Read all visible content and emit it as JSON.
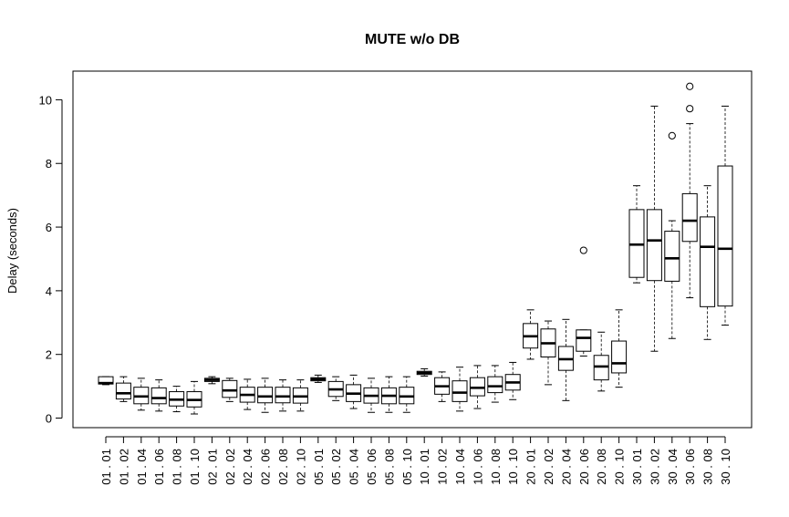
{
  "chart_data": {
    "type": "boxplot",
    "title": "MUTE w/o DB",
    "xlabel": "",
    "ylabel": "Delay (seconds)",
    "ylim": [
      -0.3,
      10.9
    ],
    "yticks": [
      0,
      2,
      4,
      6,
      8,
      10
    ],
    "grid": false,
    "legend": "none",
    "categories": [
      "01 . 01",
      "01 . 02",
      "01 . 04",
      "01 . 06",
      "01 . 08",
      "01 . 10",
      "02 . 01",
      "02 . 02",
      "02 . 04",
      "02 . 06",
      "02 . 08",
      "02 . 10",
      "05 . 01",
      "05 . 02",
      "05 . 04",
      "05 . 06",
      "05 . 08",
      "05 . 10",
      "10 . 01",
      "10 . 02",
      "10 . 04",
      "10 . 06",
      "10 . 08",
      "10 . 10",
      "20 . 01",
      "20 . 02",
      "20 . 04",
      "20 . 06",
      "20 . 08",
      "20 . 10",
      "30 . 01",
      "30 . 02",
      "30 . 04",
      "30 . 06",
      "30 . 08",
      "30 . 10"
    ],
    "boxes": [
      {
        "min": 1.05,
        "q1": 1.07,
        "median": 1.1,
        "q3": 1.3,
        "max": 1.3,
        "outliers": []
      },
      {
        "min": 0.52,
        "q1": 0.6,
        "median": 0.78,
        "q3": 1.1,
        "max": 1.3,
        "outliers": []
      },
      {
        "min": 0.25,
        "q1": 0.45,
        "median": 0.68,
        "q3": 0.97,
        "max": 1.25,
        "outliers": []
      },
      {
        "min": 0.22,
        "q1": 0.45,
        "median": 0.63,
        "q3": 0.95,
        "max": 1.2,
        "outliers": []
      },
      {
        "min": 0.2,
        "q1": 0.38,
        "median": 0.58,
        "q3": 0.83,
        "max": 1.0,
        "outliers": []
      },
      {
        "min": 0.13,
        "q1": 0.35,
        "median": 0.57,
        "q3": 0.83,
        "max": 1.15,
        "outliers": []
      },
      {
        "min": 1.08,
        "q1": 1.15,
        "median": 1.2,
        "q3": 1.25,
        "max": 1.3,
        "outliers": []
      },
      {
        "min": 0.52,
        "q1": 0.65,
        "median": 0.87,
        "q3": 1.18,
        "max": 1.25,
        "outliers": []
      },
      {
        "min": 0.27,
        "q1": 0.5,
        "median": 0.73,
        "q3": 0.97,
        "max": 1.22,
        "outliers": []
      },
      {
        "min": 0.18,
        "q1": 0.48,
        "median": 0.68,
        "q3": 0.97,
        "max": 1.25,
        "outliers": []
      },
      {
        "min": 0.22,
        "q1": 0.48,
        "median": 0.68,
        "q3": 0.97,
        "max": 1.2,
        "outliers": []
      },
      {
        "min": 0.22,
        "q1": 0.47,
        "median": 0.68,
        "q3": 0.95,
        "max": 1.2,
        "outliers": []
      },
      {
        "min": 1.12,
        "q1": 1.17,
        "median": 1.22,
        "q3": 1.27,
        "max": 1.35,
        "outliers": []
      },
      {
        "min": 0.55,
        "q1": 0.68,
        "median": 0.9,
        "q3": 1.15,
        "max": 1.3,
        "outliers": []
      },
      {
        "min": 0.3,
        "q1": 0.52,
        "median": 0.77,
        "q3": 1.05,
        "max": 1.35,
        "outliers": []
      },
      {
        "min": 0.18,
        "q1": 0.47,
        "median": 0.7,
        "q3": 0.95,
        "max": 1.25,
        "outliers": []
      },
      {
        "min": 0.18,
        "q1": 0.45,
        "median": 0.7,
        "q3": 0.95,
        "max": 1.3,
        "outliers": []
      },
      {
        "min": 0.18,
        "q1": 0.45,
        "median": 0.68,
        "q3": 0.97,
        "max": 1.3,
        "outliers": []
      },
      {
        "min": 1.32,
        "q1": 1.37,
        "median": 1.42,
        "q3": 1.47,
        "max": 1.55,
        "outliers": []
      },
      {
        "min": 0.52,
        "q1": 0.75,
        "median": 1.0,
        "q3": 1.27,
        "max": 1.45,
        "outliers": []
      },
      {
        "min": 0.22,
        "q1": 0.52,
        "median": 0.8,
        "q3": 1.17,
        "max": 1.6,
        "outliers": []
      },
      {
        "min": 0.3,
        "q1": 0.7,
        "median": 0.95,
        "q3": 1.27,
        "max": 1.65,
        "outliers": []
      },
      {
        "min": 0.5,
        "q1": 0.8,
        "median": 1.0,
        "q3": 1.3,
        "max": 1.65,
        "outliers": []
      },
      {
        "min": 0.58,
        "q1": 0.88,
        "median": 1.12,
        "q3": 1.37,
        "max": 1.75,
        "outliers": []
      },
      {
        "min": 1.85,
        "q1": 2.2,
        "median": 2.57,
        "q3": 2.97,
        "max": 3.4,
        "outliers": []
      },
      {
        "min": 1.05,
        "q1": 1.92,
        "median": 2.35,
        "q3": 2.8,
        "max": 3.05,
        "outliers": []
      },
      {
        "min": 0.55,
        "q1": 1.5,
        "median": 1.85,
        "q3": 2.25,
        "max": 3.1,
        "outliers": []
      },
      {
        "min": 1.95,
        "q1": 2.1,
        "median": 2.52,
        "q3": 2.77,
        "max": 2.77,
        "outliers": [
          5.27
        ]
      },
      {
        "min": 0.85,
        "q1": 1.2,
        "median": 1.62,
        "q3": 1.97,
        "max": 2.7,
        "outliers": []
      },
      {
        "min": 0.97,
        "q1": 1.42,
        "median": 1.72,
        "q3": 2.42,
        "max": 3.4,
        "outliers": []
      },
      {
        "min": 4.25,
        "q1": 4.42,
        "median": 5.45,
        "q3": 6.55,
        "max": 7.3,
        "outliers": []
      },
      {
        "min": 2.1,
        "q1": 4.32,
        "median": 5.58,
        "q3": 6.55,
        "max": 9.8,
        "outliers": []
      },
      {
        "min": 2.5,
        "q1": 4.3,
        "median": 5.02,
        "q3": 5.87,
        "max": 6.2,
        "outliers": [
          8.87
        ]
      },
      {
        "min": 3.78,
        "q1": 5.55,
        "median": 6.2,
        "q3": 7.05,
        "max": 9.25,
        "outliers": [
          9.72,
          10.42
        ]
      },
      {
        "min": 2.47,
        "q1": 3.5,
        "median": 5.38,
        "q3": 6.32,
        "max": 7.3,
        "outliers": []
      },
      {
        "min": 2.92,
        "q1": 3.52,
        "median": 5.32,
        "q3": 7.92,
        "max": 9.8,
        "outliers": []
      }
    ]
  }
}
